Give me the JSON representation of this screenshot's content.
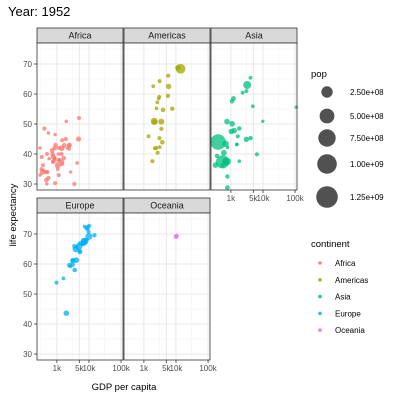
{
  "title": "Year: 1952",
  "chart_data": {
    "type": "scatter",
    "title": "Year: 1952",
    "xlabel": "GDP per capita",
    "ylabel": "life expectancy",
    "x_scale": "log10",
    "xlim": [
      240,
      115000
    ],
    "ylim": [
      28,
      77
    ],
    "x_ticks": [
      1000,
      5000,
      10000,
      100000
    ],
    "x_tick_labels": [
      "1k",
      "5k",
      "10k",
      "100k"
    ],
    "y_ticks": [
      30,
      40,
      50,
      60,
      70
    ],
    "grid": true,
    "facets": [
      "Africa",
      "Americas",
      "Asia",
      "Europe",
      "Oceania"
    ],
    "series": [
      {
        "name": "Africa",
        "color": "#F8766D",
        "points": [
          [
            2450,
            43,
            9
          ],
          [
            3521,
            30,
            4
          ],
          [
            851,
            38,
            2
          ],
          [
            543,
            47,
            0.4
          ],
          [
            543,
            32,
            5
          ],
          [
            339,
            39,
            2.4
          ],
          [
            1173,
            38,
            5
          ],
          [
            1071,
            35,
            1.3
          ],
          [
            1179,
            38,
            2.7
          ],
          [
            1103,
            40,
            0.15
          ],
          [
            781,
            39,
            14
          ],
          [
            2126,
            42,
            0.9
          ],
          [
            1389,
            40,
            3
          ],
          [
            2670,
            34,
            0.06
          ],
          [
            1419,
            41.9,
            22
          ],
          [
            376,
            34.5,
            0.2
          ],
          [
            328,
            35,
            1.4
          ],
          [
            362,
            34,
            20
          ],
          [
            4293,
            37,
            0.4
          ],
          [
            485,
            30,
            0.28
          ],
          [
            911,
            43,
            5
          ],
          [
            510,
            34,
            2.7
          ],
          [
            299,
            33,
            0.6
          ],
          [
            853,
            42,
            6.5
          ],
          [
            298,
            42,
            0.75
          ],
          [
            575,
            38.5,
            0.86
          ],
          [
            2388,
            42.7,
            1.02
          ],
          [
            1443,
            36.7,
            4.76
          ],
          [
            369,
            36.3,
            2.92
          ],
          [
            452,
            34,
            3.8
          ],
          [
            744,
            37.4,
            1.02
          ],
          [
            1967,
            50.9,
            0.52
          ],
          [
            1688,
            42.9,
            9.94
          ],
          [
            469,
            31.3,
            6.45
          ],
          [
            2423,
            41.7,
            0.49
          ],
          [
            761,
            37.4,
            3.38
          ],
          [
            1077,
            36.3,
            33.1
          ],
          [
            493,
            40,
            2.53
          ],
          [
            880,
            46.5,
            0.06
          ],
          [
            1450,
            37.3,
            2.76
          ],
          [
            879,
            30.3,
            2.14
          ],
          [
            1136,
            32.98,
            2.53
          ],
          [
            4725,
            45,
            14.26
          ],
          [
            1616,
            38.6,
            8.5
          ],
          [
            716,
            41.2,
            8.32
          ],
          [
            859,
            38.6,
            1.22
          ],
          [
            1468,
            44.6,
            3.65
          ],
          [
            735,
            39.98,
            5.82
          ],
          [
            1147,
            42.04,
            2.67
          ],
          [
            407,
            48.45,
            3.08
          ],
          [
            1900,
            45,
            4.0
          ],
          [
            4900,
            52,
            2.5
          ]
        ]
      },
      {
        "name": "Americas",
        "color": "#A3A500",
        "points": [
          [
            5911,
            62.5,
            17.9
          ],
          [
            2677,
            40.4,
            2.88
          ],
          [
            2109,
            50.9,
            56.6
          ],
          [
            11367,
            68.8,
            14.8
          ],
          [
            3940,
            54.7,
            6.38
          ],
          [
            2144,
            50.6,
            12.35
          ],
          [
            2627,
            57.2,
            0.93
          ],
          [
            5587,
            59.4,
            6.0
          ],
          [
            1398,
            45.9,
            2.49
          ],
          [
            3522,
            48.4,
            3.55
          ],
          [
            3048,
            45.3,
            2.04
          ],
          [
            2428,
            42.0,
            3.15
          ],
          [
            1840,
            37.6,
            3.2
          ],
          [
            2195,
            41.9,
            1.52
          ],
          [
            2898,
            58.5,
            1.43
          ],
          [
            3478,
            50.8,
            30.1
          ],
          [
            3112,
            42.3,
            1.17
          ],
          [
            2480,
            55.2,
            0.94
          ],
          [
            1953,
            62.6,
            1.56
          ],
          [
            3759,
            43.9,
            8.03
          ],
          [
            3082,
            64.3,
            2.23
          ],
          [
            3023,
            59.1,
            0.66
          ],
          [
            13990,
            68.4,
            157.6
          ],
          [
            5717,
            66.1,
            2.25
          ],
          [
            7690,
            55.1,
            5.44
          ]
        ]
      },
      {
        "name": "Asia",
        "color": "#00BF7D",
        "points": [
          [
            779,
            28.8,
            8.43
          ],
          [
            9867,
            50.9,
            0.12
          ],
          [
            684,
            37.5,
            46.9
          ],
          [
            368,
            39.4,
            4.69
          ],
          [
            400,
            44.0,
            556.3
          ],
          [
            3054,
            60.96,
            2.13
          ],
          [
            547,
            37.4,
            372
          ],
          [
            750,
            37.5,
            82.05
          ],
          [
            3035,
            44.9,
            17.27
          ],
          [
            4130,
            45.3,
            5.44
          ],
          [
            4087,
            65.4,
            1.62
          ],
          [
            3217,
            63.0,
            86.46
          ],
          [
            1547,
            43.2,
            0.61
          ],
          [
            1088,
            50.06,
            20.95
          ],
          [
            1031,
            47.5,
            20.95
          ],
          [
            108382,
            55.6,
            0.16
          ],
          [
            4835,
            55.9,
            1.44
          ],
          [
            1831,
            48.5,
            6.75
          ],
          [
            786,
            42.2,
            0.8
          ],
          [
            331,
            36.3,
            20.09
          ],
          [
            546,
            36.2,
            9.18
          ],
          [
            1828,
            37.6,
            0.51
          ],
          [
            684,
            43.4,
            41.35
          ],
          [
            1273,
            47.8,
            22.44
          ],
          [
            6460,
            39.9,
            4.01
          ],
          [
            2315,
            60.4,
            1.13
          ],
          [
            1083,
            57.6,
            7.98
          ],
          [
            1643,
            45.9,
            3.66
          ],
          [
            1207,
            58.5,
            8.55
          ],
          [
            757,
            50.8,
            21.29
          ],
          [
            606,
            40.4,
            26.25
          ],
          [
            1516,
            43.2,
            0.44
          ],
          [
            781,
            32.5,
            4.96
          ]
        ]
      },
      {
        "name": "Europe",
        "color": "#00B0F6",
        "points": [
          [
            1601,
            55.2,
            1.28
          ],
          [
            6137,
            66.8,
            6.93
          ],
          [
            8343,
            68.0,
            8.73
          ],
          [
            973,
            53.8,
            2.79
          ],
          [
            2444,
            59.6,
            7.27
          ],
          [
            3119,
            61.2,
            3.88
          ],
          [
            6876,
            66.9,
            9.13
          ],
          [
            9692,
            70.8,
            4.33
          ],
          [
            6425,
            66.6,
            4.09
          ],
          [
            7030,
            67.4,
            42.46
          ],
          [
            7144,
            67.5,
            69.15
          ],
          [
            3531,
            65.9,
            7.73
          ],
          [
            5264,
            64.0,
            9.5
          ],
          [
            7268,
            72.5,
            0.15
          ],
          [
            5210,
            66.9,
            2.95
          ],
          [
            4931,
            65.9,
            47.67
          ],
          [
            2648,
            59.2,
            0.41
          ],
          [
            8942,
            72.1,
            10.38
          ],
          [
            10095,
            72.7,
            3.33
          ],
          [
            4029,
            61.3,
            25.73
          ],
          [
            3068,
            59.8,
            8.53
          ],
          [
            3145,
            61.1,
            16.63
          ],
          [
            3581,
            58.0,
            6.86
          ],
          [
            5074,
            64.4,
            3.56
          ],
          [
            4215,
            65.6,
            1.49
          ],
          [
            3834,
            64.9,
            28.55
          ],
          [
            8528,
            71.9,
            7.12
          ],
          [
            14734,
            69.6,
            4.82
          ],
          [
            1969,
            43.6,
            22.24
          ],
          [
            9980,
            69.2,
            50.43
          ]
        ]
      },
      {
        "name": "Oceania",
        "color": "#E76BF3",
        "points": [
          [
            10040,
            69.1,
            8.69
          ],
          [
            10557,
            69.4,
            1.99
          ]
        ]
      }
    ],
    "size_legend": {
      "title": "pop",
      "labels": [
        "2.50e+08",
        "5.00e+08",
        "7.50e+08",
        "1.00e+09",
        "1.25e+09"
      ],
      "values": [
        250000000,
        500000000,
        750000000,
        1000000000,
        1250000000
      ]
    },
    "color_legend": {
      "title": "continent",
      "labels": [
        "Africa",
        "Americas",
        "Asia",
        "Europe",
        "Oceania"
      ],
      "colors": [
        "#F8766D",
        "#A3A500",
        "#00BF7D",
        "#00B0F6",
        "#E76BF3"
      ]
    }
  }
}
